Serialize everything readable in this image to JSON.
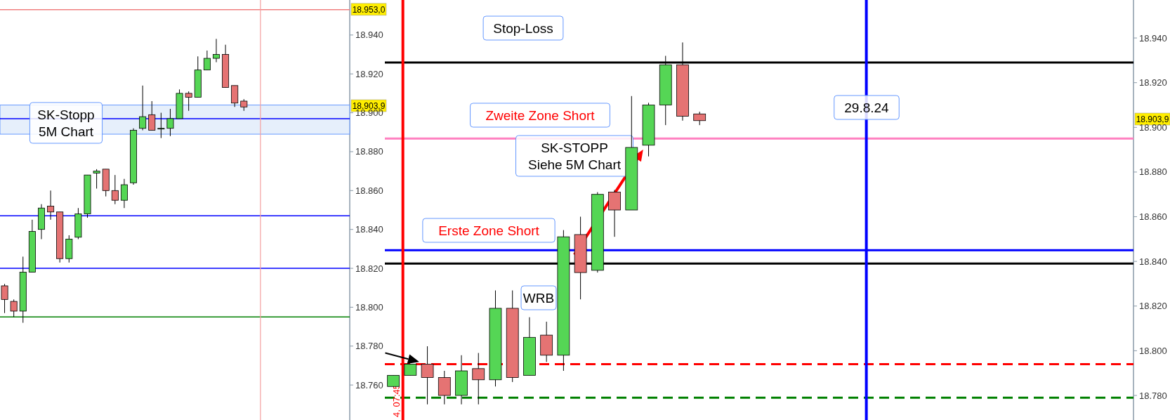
{
  "chart_data": [
    {
      "type": "candlestick",
      "categories": [
        null,
        null,
        null,
        null,
        null,
        null,
        null,
        null,
        null,
        null,
        null,
        null,
        null,
        null,
        null,
        null,
        null,
        null,
        null,
        null,
        null,
        null,
        null,
        null,
        null,
        null,
        null,
        null,
        null,
        null,
        null,
        null,
        null,
        null,
        null,
        null,
        null,
        null
      ],
      "ohlc": [
        [
          18811,
          18812,
          18797,
          18804
        ],
        [
          18803,
          18804,
          18795,
          18798
        ],
        [
          18798,
          18826,
          18792,
          18818
        ],
        [
          18818,
          18845,
          18818,
          18839
        ],
        [
          18840,
          18853,
          18835,
          18851
        ],
        [
          18852,
          18860,
          18845,
          18849
        ],
        [
          18849,
          18849,
          18823,
          18825
        ],
        [
          18825,
          18837,
          18823,
          18835
        ],
        [
          18836,
          18851,
          18835,
          18848
        ],
        [
          18848,
          18868,
          18846,
          18868
        ],
        [
          18869,
          18871,
          18861,
          18870
        ],
        [
          18871,
          18871,
          18857,
          18860
        ],
        [
          18860,
          18868,
          18853,
          18855
        ],
        [
          18855,
          18866,
          18851,
          18863
        ],
        [
          18864,
          18892,
          18863,
          18891
        ],
        [
          18892,
          18914,
          18891,
          18898
        ],
        [
          18899,
          18906,
          18891,
          18891
        ],
        [
          18892,
          18900,
          18887,
          18892
        ],
        [
          18892,
          18902,
          18888,
          18897
        ],
        [
          18897,
          18912,
          18897,
          18910
        ],
        [
          18910,
          18911,
          18901,
          18908
        ],
        [
          18908,
          18929,
          18908,
          18922
        ],
        [
          18922,
          18932,
          18922,
          18928
        ],
        [
          18928,
          18938,
          18926,
          18930
        ],
        [
          18930,
          18935,
          18913,
          18913
        ],
        [
          18914,
          18914,
          18903,
          18905
        ],
        [
          18906,
          18907,
          18901,
          18903
        ],
        null,
        null,
        null,
        null,
        null,
        null,
        null,
        null,
        null,
        null,
        null
      ],
      "colors": [
        "#e57373",
        "#e57373",
        "#55d655",
        "#55d655",
        "#55d655",
        "#e57373",
        "#e57373",
        "#55d655",
        "#55d655",
        "#55d655",
        "#55d655",
        "#e57373",
        "#e57373",
        "#55d655",
        "#55d655",
        "#55d655",
        "#e57373",
        "#55d655",
        "#55d655",
        "#55d655",
        "#e57373",
        "#55d655",
        "#55d655",
        "#55d655",
        "#e57373",
        "#e57373",
        "#e57373",
        null,
        null,
        null,
        null,
        null,
        null,
        null,
        null,
        null,
        null,
        null
      ],
      "ylim": [
        18742,
        18958
      ],
      "yticks": [
        {
          "value": 18760,
          "label": "18.760"
        },
        {
          "value": 18780,
          "label": "18.780"
        },
        {
          "value": 18800,
          "label": "18.800"
        },
        {
          "value": 18820,
          "label": "18.820"
        },
        {
          "value": 18840,
          "label": "18.840"
        },
        {
          "value": 18860,
          "label": "18.860"
        },
        {
          "value": 18880,
          "label": "18.880"
        },
        {
          "value": 18900,
          "label": "18.900"
        },
        {
          "value": 18920,
          "label": "18.920"
        },
        {
          "value": 18940,
          "label": "18.940"
        }
      ],
      "tick_labels": "y",
      "grid": false,
      "ref_lines": [
        {
          "axis": "y",
          "value": 18953,
          "color": "#f08080",
          "label": "18.953,0"
        },
        {
          "axis": "y",
          "value": 18897,
          "color": "#0000ff"
        },
        {
          "axis": "y",
          "value": 18847,
          "color": "#0000ff"
        },
        {
          "axis": "y",
          "value": 18820,
          "color": "#0000ff"
        },
        {
          "axis": "y",
          "value": 18795,
          "color": "#008000"
        },
        {
          "axis": "x",
          "color": "#f4a0a0"
        }
      ],
      "bands": [
        {
          "axis": "y",
          "from": 18889,
          "to": 18904,
          "color": "#dce8fa"
        }
      ],
      "annotations": [
        "SK-Stopp\n5M Chart",
        "18.903,9"
      ]
    },
    {
      "type": "candlestick",
      "categories": [
        null,
        null,
        null,
        null,
        null,
        null,
        null,
        null,
        null,
        null,
        null,
        null,
        null,
        null,
        null,
        null,
        null,
        null,
        null,
        null,
        null,
        null,
        null,
        null,
        null,
        null,
        null,
        null,
        null,
        null,
        null,
        null,
        null,
        null,
        null,
        null,
        null,
        null,
        null,
        null,
        null,
        null,
        null,
        null
      ],
      "ohlc": [
        [
          18784,
          18789,
          18784,
          18789
        ],
        [
          18789,
          18794,
          18789,
          18794
        ],
        [
          18794,
          18802,
          18776,
          18788
        ],
        [
          18788,
          18791,
          18776,
          18780
        ],
        [
          18780,
          18798,
          18776,
          18791
        ],
        [
          18792,
          18799,
          18776,
          18787
        ],
        [
          18787,
          18827,
          18784,
          18819
        ],
        [
          18819,
          18827,
          18786,
          18788
        ],
        [
          18789,
          18815,
          18789,
          18806
        ],
        [
          18807,
          18813,
          18795,
          18798
        ],
        [
          18798,
          18854,
          18791,
          18851
        ],
        [
          18852,
          18860,
          18823,
          18835
        ],
        [
          18836,
          18871,
          18835,
          18870
        ],
        [
          18871,
          18872,
          18851,
          18863
        ],
        [
          18863,
          18914,
          18863,
          18891
        ],
        [
          18892,
          18911,
          18887,
          18910
        ],
        [
          18910,
          18932,
          18901,
          18928
        ],
        [
          18928,
          18938,
          18903,
          18905
        ],
        [
          18906,
          18907,
          18901,
          18903
        ],
        null,
        null,
        null,
        null,
        null,
        null,
        null,
        null,
        null,
        null,
        null,
        null,
        null,
        null,
        null,
        null,
        null,
        null,
        null,
        null,
        null,
        null,
        null,
        null,
        null
      ],
      "colors": [
        "#55d655",
        "#55d655",
        "#e57373",
        "#e57373",
        "#55d655",
        "#e57373",
        "#55d655",
        "#e57373",
        "#55d655",
        "#e57373",
        "#55d655",
        "#e57373",
        "#55d655",
        "#e57373",
        "#55d655",
        "#55d655",
        "#55d655",
        "#e57373",
        "#e57373",
        null,
        null,
        null,
        null,
        null,
        null,
        null,
        null,
        null,
        null,
        null,
        null,
        null,
        null,
        null,
        null,
        null,
        null,
        null,
        null,
        null,
        null,
        null,
        null,
        null
      ],
      "ylim": [
        18769,
        18957
      ],
      "yticks": [
        {
          "value": 18780,
          "label": "18.780"
        },
        {
          "value": 18800,
          "label": "18.800"
        },
        {
          "value": 18820,
          "label": "18.820"
        },
        {
          "value": 18840,
          "label": "18.840"
        },
        {
          "value": 18860,
          "label": "18.860"
        },
        {
          "value": 18880,
          "label": "18.880"
        },
        {
          "value": 18900,
          "label": "18.900"
        },
        {
          "value": 18920,
          "label": "18.920"
        },
        {
          "value": 18940,
          "label": "18.940"
        }
      ],
      "tick_labels": "y",
      "grid": false,
      "ref_lines": [
        {
          "axis": "y",
          "value": 18929,
          "color": "#000000",
          "label": "Stop-Loss"
        },
        {
          "axis": "y",
          "value": 18895,
          "color": "#ff80c0",
          "label": "Zweite Zone Short"
        },
        {
          "axis": "y",
          "value": 18845,
          "color": "#0000ff",
          "label": "Erste Zone Short"
        },
        {
          "axis": "y",
          "value": 18839,
          "color": "#000000"
        },
        {
          "axis": "y",
          "value": 18794,
          "color": "#ff0000",
          "line_style": "dashed"
        },
        {
          "axis": "y",
          "value": 18779,
          "color": "#008000",
          "line_style": "dashed"
        },
        {
          "axis": "x",
          "color": "#ff0000",
          "label": "4, 07:45"
        },
        {
          "axis": "x",
          "color": "#0000ff"
        }
      ],
      "annotations": [
        "29.8.24",
        "SK-STOPP\nSiehe 5M Chart",
        "WRB",
        "18.903,9"
      ]
    }
  ]
}
